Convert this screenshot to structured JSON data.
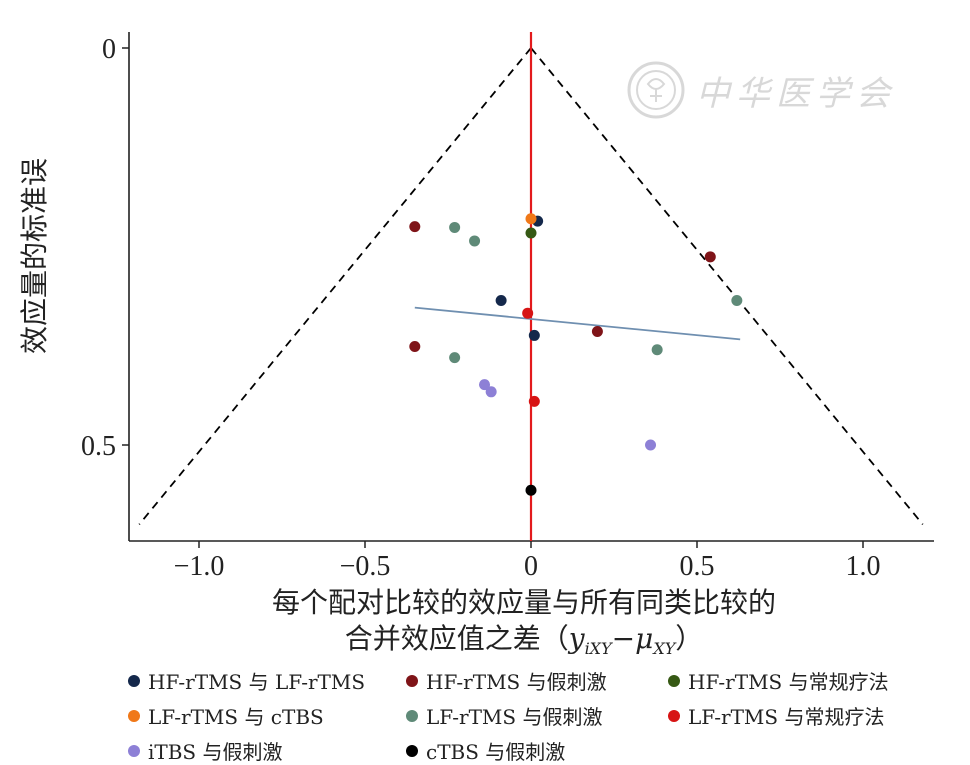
{
  "chart_data": {
    "type": "scatter",
    "subtype": "comparison-adjusted funnel plot",
    "xlabel_line1": "每个配对比较的效应量与所有同类比较的",
    "xlabel_line2": "合并效应值之差（",
    "xlabel_formula": "y",
    "xlabel_sub1": "iXY",
    "xlabel_mid": "−μ",
    "xlabel_sub2": "XY",
    "xlabel_close": "）",
    "ylabel": "效应量的标准误",
    "x_ticks": [
      "−1.0",
      "−0.5",
      "0",
      "0.5",
      "1.0"
    ],
    "x_tick_values": [
      -1.0,
      -0.5,
      0,
      0.5,
      1.0
    ],
    "y_ticks": [
      "0",
      "0.5"
    ],
    "y_tick_values": [
      0,
      0.5
    ],
    "xlim": [
      -1.22,
      1.22
    ],
    "ylim": [
      0,
      0.62
    ],
    "y_reversed": true,
    "funnel_apex": [
      0,
      0
    ],
    "funnel_base": [
      [
        -1.18,
        0.6
      ],
      [
        1.18,
        0.6
      ]
    ],
    "vertical_line_x": 0,
    "regression_line": [
      [
        -0.35,
        0.327
      ],
      [
        0.63,
        0.367
      ]
    ],
    "colors": {
      "reference_line": "#e31a1c",
      "regression_line": "#6f8fb0",
      "funnel": "#000000"
    },
    "series": [
      {
        "name": "HF-rTMS 与 LF-rTMS",
        "color": "#14284b",
        "points": [
          [
            0.02,
            0.218
          ],
          [
            -0.09,
            0.318
          ],
          [
            0.01,
            0.362
          ]
        ]
      },
      {
        "name": "HF-rTMS 与假刺激",
        "color": "#7f1418",
        "points": [
          [
            -0.35,
            0.225
          ],
          [
            0.54,
            0.263
          ],
          [
            0.2,
            0.357
          ],
          [
            -0.35,
            0.376
          ]
        ]
      },
      {
        "name": "HF-rTMS 与常规疗法",
        "color": "#365914",
        "points": [
          [
            0.0,
            0.233
          ]
        ]
      },
      {
        "name": "LF-rTMS 与 cTBS",
        "color": "#f07818",
        "points": [
          [
            0.0,
            0.215
          ]
        ]
      },
      {
        "name": "LF-rTMS 与假刺激",
        "color": "#5f8a78",
        "points": [
          [
            -0.23,
            0.226
          ],
          [
            -0.17,
            0.243
          ],
          [
            0.62,
            0.318
          ],
          [
            0.38,
            0.38
          ],
          [
            -0.23,
            0.39
          ]
        ]
      },
      {
        "name": "LF-rTMS 与常规疗法",
        "color": "#d71414",
        "points": [
          [
            -0.01,
            0.334
          ],
          [
            0.01,
            0.445
          ]
        ]
      },
      {
        "name": "iTBS 与假刺激",
        "color": "#8d80d6",
        "points": [
          [
            -0.14,
            0.424
          ],
          [
            -0.12,
            0.433
          ],
          [
            0.36,
            0.5
          ]
        ]
      },
      {
        "name": "cTBS 与假刺激",
        "color": "#000000",
        "points": [
          [
            0.0,
            0.557
          ]
        ]
      }
    ],
    "legend_position": "bottom"
  },
  "watermark": {
    "text": "中华医学会",
    "icon": "society-seal-icon"
  }
}
